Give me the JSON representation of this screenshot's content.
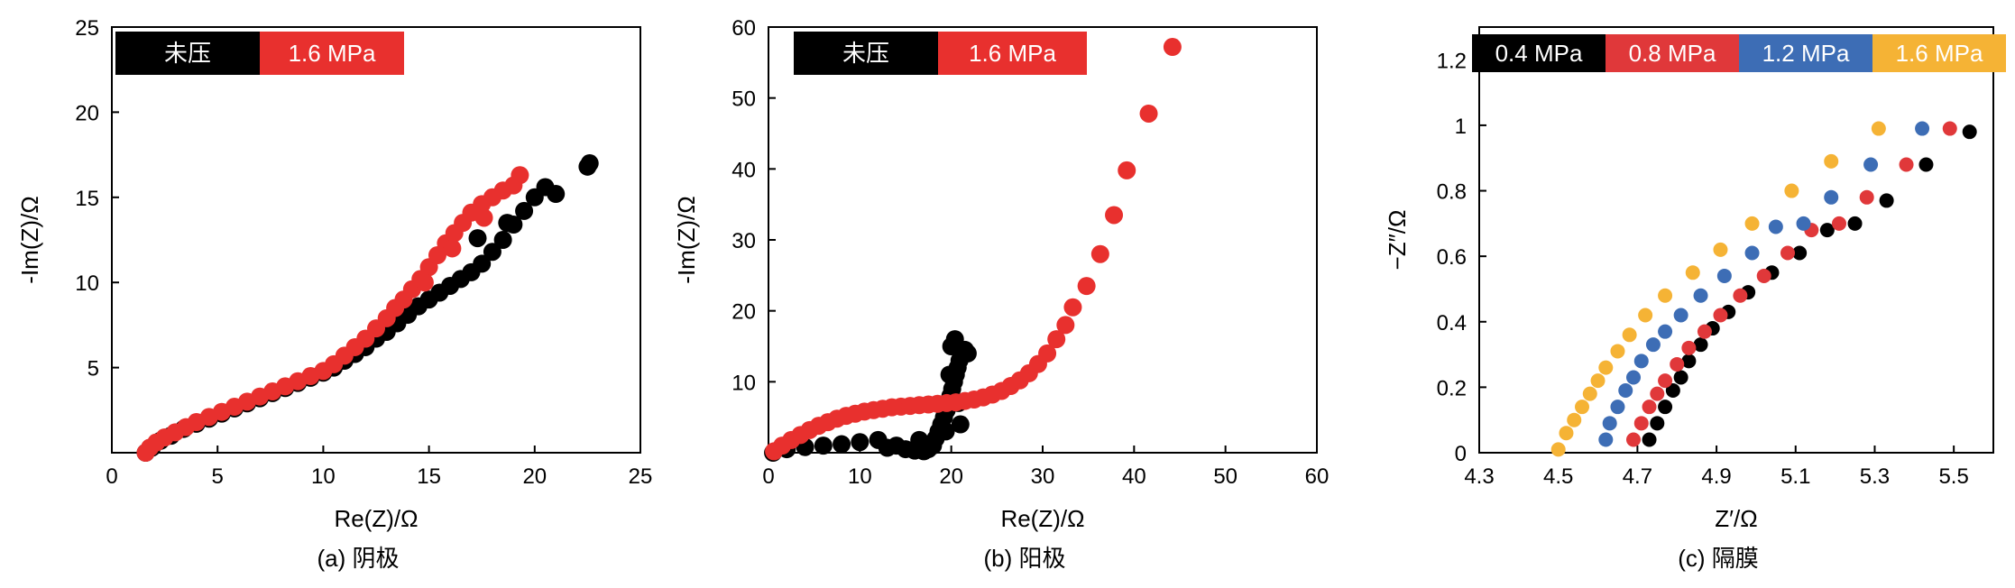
{
  "chart_data": [
    {
      "type": "scatter",
      "caption": "(a) 阴极",
      "xlabel": "Re(Z)/Ω",
      "ylabel": "-Im(Z)/Ω",
      "xlim": [
        0,
        25
      ],
      "ylim": [
        0,
        25
      ],
      "xticks": [
        0,
        5,
        10,
        15,
        20,
        25
      ],
      "yticks": [
        5,
        10,
        15,
        20,
        25
      ],
      "grid": false,
      "legend_position": "top-left",
      "colors": {
        "unpressed": "#000000",
        "pressed": "#e8302e"
      },
      "series": [
        {
          "name": "未压",
          "color": "#000000",
          "points": [
            [
              1.6,
              0
            ],
            [
              1.9,
              0.3
            ],
            [
              2.3,
              0.7
            ],
            [
              2.8,
              1.0
            ],
            [
              3.4,
              1.4
            ],
            [
              4.0,
              1.7
            ],
            [
              4.6,
              2.0
            ],
            [
              5.2,
              2.3
            ],
            [
              5.8,
              2.6
            ],
            [
              6.4,
              2.9
            ],
            [
              7.0,
              3.2
            ],
            [
              7.6,
              3.5
            ],
            [
              8.2,
              3.8
            ],
            [
              8.8,
              4.1
            ],
            [
              9.4,
              4.4
            ],
            [
              10.0,
              4.7
            ],
            [
              10.5,
              5.0
            ],
            [
              11.0,
              5.4
            ],
            [
              11.5,
              5.8
            ],
            [
              12.0,
              6.2
            ],
            [
              12.5,
              6.7
            ],
            [
              13.0,
              7.1
            ],
            [
              13.5,
              7.6
            ],
            [
              14.0,
              8.1
            ],
            [
              14.5,
              8.6
            ],
            [
              15.0,
              9.0
            ],
            [
              15.5,
              9.4
            ],
            [
              16.0,
              9.8
            ],
            [
              16.5,
              10.2
            ],
            [
              17.0,
              10.6
            ],
            [
              17.5,
              11.1
            ],
            [
              18.0,
              11.8
            ],
            [
              18.5,
              12.5
            ],
            [
              19.0,
              13.4
            ],
            [
              19.5,
              14.2
            ],
            [
              20.0,
              15.0
            ],
            [
              21.0,
              15.2
            ],
            [
              22.5,
              16.8
            ],
            [
              22.6,
              17.0
            ],
            [
              20.5,
              15.6
            ],
            [
              18.7,
              13.5
            ],
            [
              17.3,
              12.6
            ]
          ]
        },
        {
          "name": "1.6 MPa",
          "color": "#e8302e",
          "points": [
            [
              1.6,
              0
            ],
            [
              1.8,
              0.3
            ],
            [
              2.1,
              0.6
            ],
            [
              2.5,
              0.9
            ],
            [
              3.0,
              1.2
            ],
            [
              3.5,
              1.5
            ],
            [
              4.0,
              1.8
            ],
            [
              4.6,
              2.1
            ],
            [
              5.2,
              2.4
            ],
            [
              5.8,
              2.7
            ],
            [
              6.4,
              3.0
            ],
            [
              7.0,
              3.3
            ],
            [
              7.6,
              3.6
            ],
            [
              8.2,
              3.9
            ],
            [
              8.8,
              4.2
            ],
            [
              9.4,
              4.5
            ],
            [
              10.0,
              4.8
            ],
            [
              10.5,
              5.2
            ],
            [
              11.0,
              5.7
            ],
            [
              11.5,
              6.2
            ],
            [
              12.0,
              6.7
            ],
            [
              12.5,
              7.3
            ],
            [
              13.0,
              7.9
            ],
            [
              13.4,
              8.5
            ],
            [
              13.8,
              9.0
            ],
            [
              14.2,
              9.6
            ],
            [
              14.6,
              10.2
            ],
            [
              15.0,
              10.9
            ],
            [
              15.4,
              11.6
            ],
            [
              15.8,
              12.3
            ],
            [
              16.2,
              12.9
            ],
            [
              16.6,
              13.5
            ],
            [
              17.0,
              14.1
            ],
            [
              17.5,
              14.6
            ],
            [
              18.0,
              15.0
            ],
            [
              18.5,
              15.4
            ],
            [
              19.0,
              15.7
            ],
            [
              19.3,
              16.3
            ],
            [
              14.8,
              10.0
            ],
            [
              16.1,
              12.0
            ],
            [
              17.6,
              13.8
            ]
          ]
        }
      ]
    },
    {
      "type": "scatter",
      "caption": "(b) 阳极",
      "xlabel": "Re(Z)/Ω",
      "ylabel": "-Im(Z)/Ω",
      "xlim": [
        0,
        60
      ],
      "ylim": [
        0,
        60
      ],
      "xticks": [
        0,
        10,
        20,
        30,
        40,
        50,
        60
      ],
      "yticks": [
        10,
        20,
        30,
        40,
        50,
        60
      ],
      "grid": false,
      "legend_position": "top-left",
      "series": [
        {
          "name": "未压",
          "color": "#000000",
          "points": [
            [
              0.5,
              0
            ],
            [
              2,
              0.5
            ],
            [
              4,
              0.8
            ],
            [
              6,
              1.0
            ],
            [
              8,
              1.2
            ],
            [
              10,
              1.5
            ],
            [
              12,
              1.8
            ],
            [
              14,
              1.0
            ],
            [
              15,
              0.5
            ],
            [
              16,
              0.3
            ],
            [
              17,
              0.2
            ],
            [
              17.5,
              0.5
            ],
            [
              18,
              1.0
            ],
            [
              18.3,
              2
            ],
            [
              18.6,
              3
            ],
            [
              18.9,
              4
            ],
            [
              19.2,
              5
            ],
            [
              19.5,
              6
            ],
            [
              19.7,
              7
            ],
            [
              19.9,
              8
            ],
            [
              20.1,
              9
            ],
            [
              20.3,
              10
            ],
            [
              20.5,
              11
            ],
            [
              20.7,
              12
            ],
            [
              20.9,
              13
            ],
            [
              21.2,
              14
            ],
            [
              21.5,
              14.5
            ],
            [
              21.8,
              14
            ],
            [
              20.4,
              16
            ],
            [
              19.8,
              11
            ],
            [
              20.8,
              7
            ],
            [
              19.4,
              3
            ],
            [
              21.0,
              4
            ],
            [
              16.5,
              1.8
            ],
            [
              13,
              0.7
            ],
            [
              20.0,
              15
            ]
          ]
        },
        {
          "name": "1.6 MPa",
          "color": "#e8302e",
          "points": [
            [
              0.6,
              0.2
            ],
            [
              1.5,
              1.0
            ],
            [
              2.5,
              1.8
            ],
            [
              3.5,
              2.5
            ],
            [
              4.5,
              3.2
            ],
            [
              5.5,
              3.8
            ],
            [
              6.5,
              4.3
            ],
            [
              7.5,
              4.8
            ],
            [
              8.5,
              5.2
            ],
            [
              9.5,
              5.5
            ],
            [
              10.5,
              5.8
            ],
            [
              11.5,
              6.0
            ],
            [
              12.5,
              6.2
            ],
            [
              13.5,
              6.4
            ],
            [
              14.5,
              6.5
            ],
            [
              15.5,
              6.6
            ],
            [
              16.5,
              6.7
            ],
            [
              17.5,
              6.8
            ],
            [
              18.5,
              6.9
            ],
            [
              19.5,
              7.0
            ],
            [
              20.5,
              7.1
            ],
            [
              21.5,
              7.3
            ],
            [
              22.5,
              7.5
            ],
            [
              23.5,
              7.8
            ],
            [
              24.5,
              8.2
            ],
            [
              25.5,
              8.7
            ],
            [
              26.5,
              9.4
            ],
            [
              27.5,
              10.2
            ],
            [
              28.5,
              11.2
            ],
            [
              29.5,
              12.5
            ],
            [
              30.5,
              14.0
            ],
            [
              31.5,
              16.0
            ],
            [
              32.5,
              18.0
            ],
            [
              33.3,
              20.5
            ],
            [
              34.8,
              23.5
            ],
            [
              36.3,
              28
            ],
            [
              37.8,
              33.5
            ],
            [
              39.2,
              39.8
            ],
            [
              41.6,
              47.8
            ],
            [
              44.2,
              57.2
            ]
          ]
        }
      ]
    },
    {
      "type": "scatter",
      "caption": "(c) 隔膜",
      "xlabel": "Z′/Ω",
      "ylabel": "−Z″/Ω",
      "xlim": [
        4.3,
        5.6
      ],
      "ylim": [
        0,
        1.3
      ],
      "xticks": [
        4.3,
        4.5,
        4.7,
        4.9,
        5.1,
        5.3,
        5.5
      ],
      "yticks": [
        0,
        0.2,
        0.4,
        0.6,
        0.8,
        1.0,
        1.2
      ],
      "grid": false,
      "legend_position": "top",
      "series": [
        {
          "name": "0.4 MPa",
          "color": "#000000",
          "points": [
            [
              4.73,
              0.04
            ],
            [
              4.75,
              0.09
            ],
            [
              4.77,
              0.14
            ],
            [
              4.79,
              0.19
            ],
            [
              4.81,
              0.23
            ],
            [
              4.83,
              0.28
            ],
            [
              4.86,
              0.33
            ],
            [
              4.89,
              0.38
            ],
            [
              4.93,
              0.43
            ],
            [
              4.98,
              0.49
            ],
            [
              5.04,
              0.55
            ],
            [
              5.11,
              0.61
            ],
            [
              5.18,
              0.68
            ],
            [
              5.25,
              0.7
            ],
            [
              5.33,
              0.77
            ],
            [
              5.43,
              0.88
            ],
            [
              5.54,
              0.98
            ]
          ]
        },
        {
          "name": "0.8 MPa",
          "color": "#e0383a",
          "points": [
            [
              4.69,
              0.04
            ],
            [
              4.71,
              0.09
            ],
            [
              4.73,
              0.14
            ],
            [
              4.75,
              0.18
            ],
            [
              4.77,
              0.22
            ],
            [
              4.8,
              0.27
            ],
            [
              4.83,
              0.32
            ],
            [
              4.87,
              0.37
            ],
            [
              4.91,
              0.42
            ],
            [
              4.96,
              0.48
            ],
            [
              5.02,
              0.54
            ],
            [
              5.08,
              0.61
            ],
            [
              5.14,
              0.68
            ],
            [
              5.21,
              0.7
            ],
            [
              5.28,
              0.78
            ],
            [
              5.38,
              0.88
            ],
            [
              5.49,
              0.99
            ]
          ]
        },
        {
          "name": "1.2 MPa",
          "color": "#3d6db5",
          "points": [
            [
              4.62,
              0.04
            ],
            [
              4.63,
              0.09
            ],
            [
              4.65,
              0.14
            ],
            [
              4.67,
              0.19
            ],
            [
              4.69,
              0.23
            ],
            [
              4.71,
              0.28
            ],
            [
              4.74,
              0.33
            ],
            [
              4.77,
              0.37
            ],
            [
              4.81,
              0.42
            ],
            [
              4.86,
              0.48
            ],
            [
              4.92,
              0.54
            ],
            [
              4.99,
              0.61
            ],
            [
              5.05,
              0.69
            ],
            [
              5.12,
              0.7
            ],
            [
              5.19,
              0.78
            ],
            [
              5.29,
              0.88
            ],
            [
              5.42,
              0.99
            ]
          ]
        },
        {
          "name": "1.6 MPa",
          "color": "#f5b335",
          "points": [
            [
              4.5,
              0.01
            ],
            [
              4.52,
              0.06
            ],
            [
              4.54,
              0.1
            ],
            [
              4.56,
              0.14
            ],
            [
              4.58,
              0.18
            ],
            [
              4.6,
              0.22
            ],
            [
              4.62,
              0.26
            ],
            [
              4.65,
              0.31
            ],
            [
              4.68,
              0.36
            ],
            [
              4.72,
              0.42
            ],
            [
              4.77,
              0.48
            ],
            [
              4.84,
              0.55
            ],
            [
              4.91,
              0.62
            ],
            [
              4.99,
              0.7
            ],
            [
              5.09,
              0.8
            ],
            [
              5.19,
              0.89
            ],
            [
              5.31,
              0.99
            ]
          ]
        }
      ]
    }
  ]
}
